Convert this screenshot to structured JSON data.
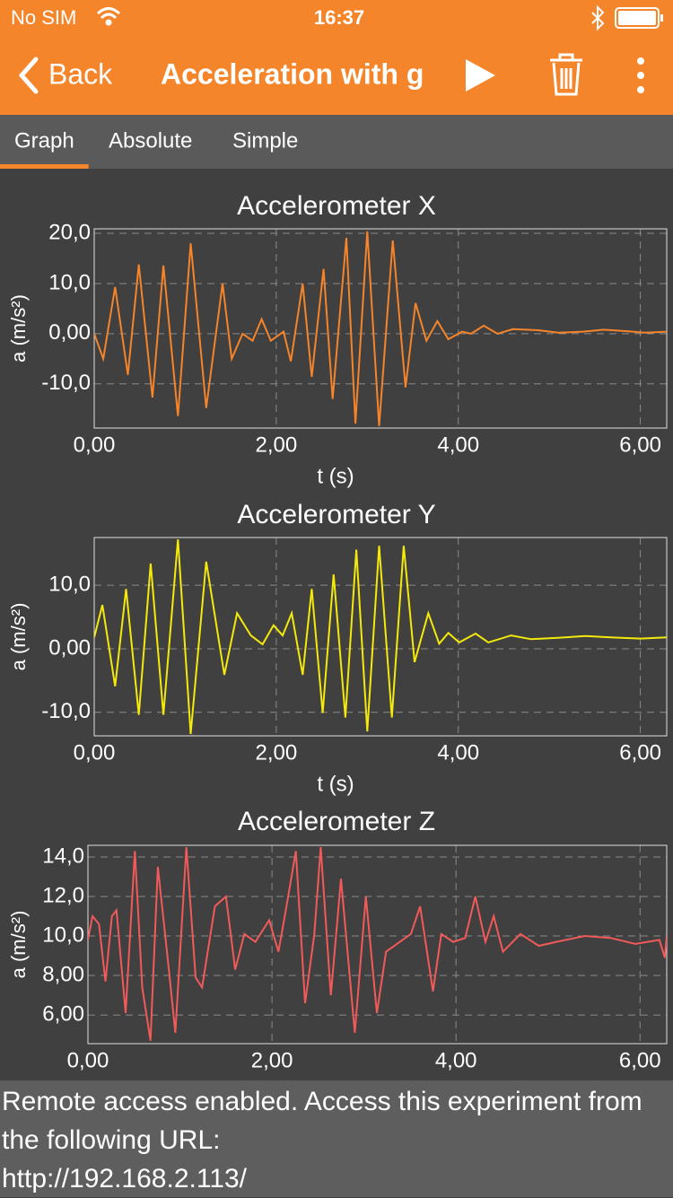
{
  "status_bar": {
    "carrier": "No SIM",
    "time": "16:37"
  },
  "nav": {
    "back": "Back",
    "title": "Acceleration with g"
  },
  "tabs": [
    "Graph",
    "Absolute",
    "Simple"
  ],
  "selected_tab": 0,
  "chart_data": [
    {
      "type": "line",
      "title": "Accelerometer X",
      "xlabel": "t (s)",
      "ylabel": "a (m/s²)",
      "color": "#f5842a",
      "grid": true,
      "xlim": [
        0,
        6.29
      ],
      "ylim": [
        -18.8,
        20.9
      ],
      "xticks": [
        {
          "value": 0,
          "label": "0,00"
        },
        {
          "value": 2,
          "label": "2,00"
        },
        {
          "value": 4,
          "label": "4,00"
        },
        {
          "value": 6,
          "label": "6,00"
        }
      ],
      "yticks": [
        {
          "value": -10,
          "label": "-10,0"
        },
        {
          "value": 0,
          "label": "0,00"
        },
        {
          "value": 10,
          "label": "10,0"
        },
        {
          "value": 20,
          "label": "20,0"
        }
      ],
      "x": [
        0,
        0.1,
        0.23,
        0.37,
        0.49,
        0.64,
        0.76,
        0.92,
        1.06,
        1.23,
        1.41,
        1.51,
        1.63,
        1.74,
        1.84,
        1.94,
        2.08,
        2.16,
        2.29,
        2.39,
        2.52,
        2.62,
        2.77,
        2.87,
        3.0,
        3.13,
        3.28,
        3.42,
        3.53,
        3.65,
        3.77,
        3.89,
        4.04,
        4.14,
        4.28,
        4.43,
        4.6,
        4.88,
        5.1,
        5.37,
        5.6,
        5.86,
        6.05,
        6.29
      ],
      "values": [
        0,
        -5,
        9.3,
        -8.2,
        13.8,
        -12.7,
        13.6,
        -16.4,
        18,
        -14.8,
        10,
        -5,
        0,
        -1.4,
        2.9,
        -1.4,
        0.4,
        -5.5,
        10,
        -8.6,
        12.9,
        -13,
        19.1,
        -17.9,
        20.4,
        -18.4,
        18.6,
        -10.7,
        6.1,
        -1.4,
        2.5,
        -1.1,
        0.4,
        0,
        1.6,
        0,
        0.9,
        0.7,
        0.2,
        0.4,
        0.8,
        0.5,
        0.2,
        0.4
      ]
    },
    {
      "type": "line",
      "title": "Accelerometer Y",
      "xlabel": "t (s)",
      "ylabel": "a (m/s²)",
      "color": "#f5e90c",
      "grid": true,
      "xlim": [
        0,
        6.29
      ],
      "ylim": [
        -13.7,
        17.5
      ],
      "xticks": [
        {
          "value": 0,
          "label": "0,00"
        },
        {
          "value": 2,
          "label": "2,00"
        },
        {
          "value": 4,
          "label": "4,00"
        },
        {
          "value": 6,
          "label": "6,00"
        }
      ],
      "yticks": [
        {
          "value": -10,
          "label": "-10,0"
        },
        {
          "value": 0,
          "label": "0,00"
        },
        {
          "value": 10,
          "label": "10,0"
        }
      ],
      "x": [
        0,
        0.09,
        0.23,
        0.35,
        0.49,
        0.62,
        0.76,
        0.92,
        1.06,
        1.23,
        1.43,
        1.57,
        1.72,
        1.85,
        1.97,
        2.07,
        2.17,
        2.29,
        2.39,
        2.51,
        2.63,
        2.76,
        2.88,
        3.0,
        3.13,
        3.27,
        3.4,
        3.52,
        3.67,
        3.79,
        3.89,
        4.01,
        4.19,
        4.33,
        4.58,
        4.8,
        5.07,
        5.4,
        5.67,
        6.0,
        6.29
      ],
      "values": [
        1.8,
        6.9,
        -5.9,
        9.4,
        -10.4,
        13.4,
        -10.4,
        17.2,
        -13.4,
        13.7,
        -4.1,
        5.6,
        2.1,
        0.7,
        3.7,
        2.1,
        5.6,
        -4.1,
        9.4,
        -10.1,
        11.7,
        -10.8,
        15.6,
        -13,
        16.2,
        -10.8,
        16.2,
        -2.1,
        5.6,
        0.8,
        2.5,
        1,
        2.4,
        1,
        2.1,
        1.5,
        1.7,
        2.0,
        1.8,
        1.6,
        1.8
      ]
    },
    {
      "type": "line",
      "title": "Accelerometer Z",
      "ylabel": "a (m/s²)",
      "color": "#f25a5a",
      "grid": true,
      "xlim": [
        0,
        6.29
      ],
      "ylim": [
        4.55,
        14.59
      ],
      "xticks": [
        {
          "value": 0,
          "label": "0,00"
        },
        {
          "value": 2,
          "label": "2,00"
        },
        {
          "value": 4,
          "label": "4,00"
        },
        {
          "value": 6,
          "label": "6,00"
        }
      ],
      "yticks": [
        {
          "value": 6,
          "label": "6,00"
        },
        {
          "value": 8,
          "label": "8,00"
        },
        {
          "value": 10,
          "label": "10,0"
        },
        {
          "value": 12,
          "label": "12,0"
        },
        {
          "value": 14,
          "label": "14,0"
        }
      ],
      "x": [
        0,
        0.05,
        0.12,
        0.19,
        0.26,
        0.31,
        0.41,
        0.51,
        0.59,
        0.68,
        0.76,
        0.88,
        0.95,
        1.07,
        1.17,
        1.24,
        1.38,
        1.5,
        1.6,
        1.7,
        1.82,
        1.97,
        2.07,
        2.15,
        2.26,
        2.36,
        2.46,
        2.53,
        2.64,
        2.75,
        2.9,
        3.02,
        3.14,
        3.24,
        3.39,
        3.51,
        3.61,
        3.75,
        3.84,
        3.97,
        4.1,
        4.21,
        4.32,
        4.41,
        4.51,
        4.7,
        4.9,
        5.09,
        5.4,
        5.68,
        5.95,
        6.21,
        6.27,
        6.29
      ],
      "values": [
        9.8,
        11,
        10.6,
        7.7,
        11,
        11.3,
        6.1,
        14.3,
        7.4,
        4.7,
        13.5,
        8.3,
        5.1,
        14.5,
        7.9,
        7.4,
        11.5,
        12,
        8.3,
        10.1,
        9.7,
        10.8,
        9.2,
        11.3,
        14.3,
        6.6,
        10.1,
        14.5,
        7.0,
        12.9,
        5.1,
        12,
        6.1,
        9.2,
        9.7,
        10.1,
        11.5,
        7.2,
        10.1,
        9.7,
        9.9,
        12,
        9.7,
        11,
        9.2,
        10.1,
        9.5,
        9.7,
        10.0,
        9.9,
        9.6,
        9.8,
        8.9,
        10
      ]
    }
  ],
  "footer": {
    "message": "Remote access enabled. Access this experiment from the following URL:",
    "url": "http://192.168.2.113/"
  }
}
